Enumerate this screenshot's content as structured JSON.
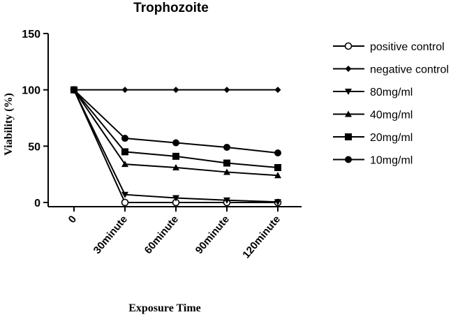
{
  "chart_data": {
    "type": "line",
    "title": "Trophozoite",
    "xlabel": "Exposure Time",
    "ylabel": "Viability (%)",
    "categories": [
      "0",
      "30minute",
      "60minute",
      "90minute",
      "120minute"
    ],
    "ylim": [
      0,
      150
    ],
    "yticks": [
      0,
      50,
      100,
      150
    ],
    "grid": false,
    "legend_position": "right",
    "series": [
      {
        "name": "positive control",
        "marker": "open-circle",
        "values": [
          100,
          0,
          0,
          0,
          0
        ]
      },
      {
        "name": "negative control",
        "marker": "diamond",
        "values": [
          100,
          100,
          100,
          100,
          100
        ]
      },
      {
        "name": "80mg/ml",
        "marker": "triangle-down",
        "values": [
          100,
          7,
          4,
          2,
          0.5
        ]
      },
      {
        "name": "40mg/ml",
        "marker": "triangle-up",
        "values": [
          100,
          34,
          31,
          27,
          24
        ]
      },
      {
        "name": "20mg/ml",
        "marker": "square",
        "values": [
          100,
          45,
          41,
          35,
          31
        ]
      },
      {
        "name": "10mg/ml",
        "marker": "circle",
        "values": [
          100,
          57,
          53,
          49,
          44
        ]
      }
    ]
  }
}
